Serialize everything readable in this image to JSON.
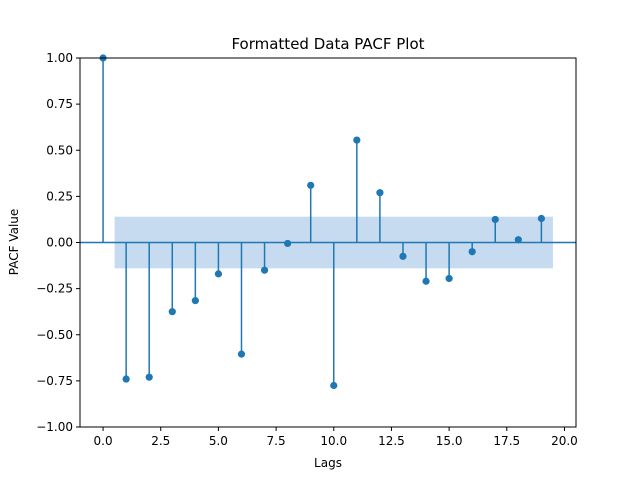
{
  "chart_data": {
    "type": "scatter",
    "title": "Formatted Data PACF Plot",
    "xlabel": "Lags",
    "ylabel": "PACF Value",
    "xlim": [
      -1,
      20.5
    ],
    "ylim": [
      -1.0,
      1.0
    ],
    "x_ticks": [
      "0.0",
      "2.5",
      "5.0",
      "7.5",
      "10.0",
      "12.5",
      "15.0",
      "17.5",
      "20.0"
    ],
    "y_ticks": [
      "1.00",
      "0.75",
      "0.50",
      "0.25",
      "0.00",
      "−0.25",
      "−0.50",
      "−0.75",
      "−1.00"
    ],
    "confidence_band": {
      "x_start": 0.5,
      "x_end": 19.5,
      "lower": -0.14,
      "upper": 0.14
    },
    "series": [
      {
        "x": [
          0,
          1,
          2,
          3,
          4,
          5,
          6,
          7,
          8,
          9,
          10,
          11,
          12,
          13,
          14,
          15,
          16,
          17,
          18,
          19
        ],
        "values": [
          1.0,
          -0.74,
          -0.73,
          -0.375,
          -0.315,
          -0.17,
          -0.605,
          -0.15,
          -0.005,
          0.31,
          -0.775,
          0.555,
          0.27,
          -0.075,
          -0.21,
          -0.195,
          -0.05,
          0.125,
          0.015,
          0.13
        ]
      }
    ],
    "colors": {
      "series": "#1f77b4",
      "band": "#c6dbef",
      "axis": "#000000"
    },
    "grid": false
  }
}
